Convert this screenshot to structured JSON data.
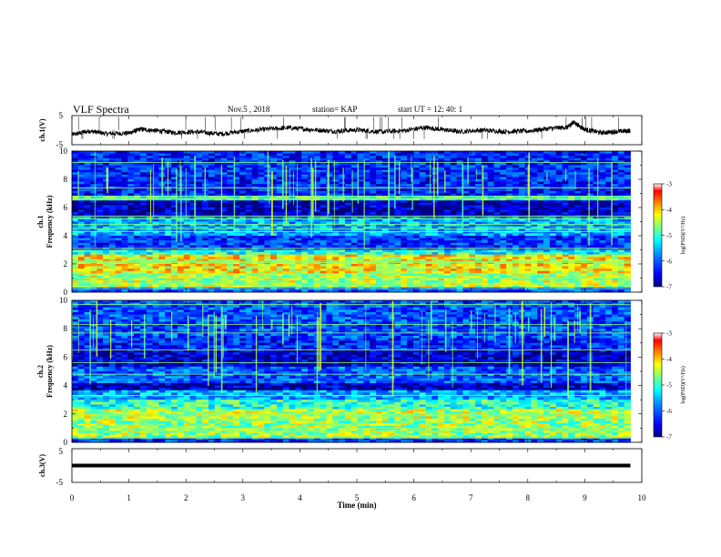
{
  "header": {
    "title": "VLF Spectra",
    "date": "Nov.5 , 2018",
    "station": "station= KAP",
    "start_ut": "start UT = 12: 40: 1"
  },
  "chart_data": [
    {
      "type": "line",
      "panel": "ch1-waveform",
      "ylabel": "ch.1(V)",
      "ylim": [
        -5,
        5
      ],
      "yticks": [
        "5",
        "-5"
      ],
      "xlim": [
        0,
        10
      ],
      "x_end": 9.8,
      "color": "#000000",
      "trend": [
        [
          0.0,
          -1.6
        ],
        [
          0.3,
          -0.3
        ],
        [
          0.6,
          -1.2
        ],
        [
          1.0,
          -1.0
        ],
        [
          1.2,
          0.3
        ],
        [
          1.5,
          -0.2
        ],
        [
          1.8,
          -0.8
        ],
        [
          2.2,
          -0.6
        ],
        [
          2.6,
          -1.3
        ],
        [
          3.0,
          -0.4
        ],
        [
          3.4,
          0.3
        ],
        [
          3.8,
          0.8
        ],
        [
          4.2,
          0.2
        ],
        [
          4.6,
          -0.4
        ],
        [
          5.0,
          0.1
        ],
        [
          5.4,
          -0.6
        ],
        [
          5.8,
          -0.2
        ],
        [
          6.2,
          0.9
        ],
        [
          6.5,
          0.2
        ],
        [
          6.8,
          -0.5
        ],
        [
          7.2,
          0.0
        ],
        [
          7.6,
          -0.5
        ],
        [
          8.0,
          -0.3
        ],
        [
          8.4,
          0.6
        ],
        [
          8.7,
          1.0
        ],
        [
          8.8,
          2.8
        ],
        [
          9.0,
          0.2
        ],
        [
          9.3,
          -0.9
        ],
        [
          9.6,
          -0.4
        ],
        [
          9.8,
          -0.2
        ]
      ]
    },
    {
      "type": "heatmap",
      "panel": "ch1-spectrogram",
      "ylabel": "ch.1",
      "ylabel2": "Frequency (kHz)",
      "ylim": [
        0,
        10
      ],
      "yticks": [
        "0",
        "2",
        "4",
        "6",
        "8",
        "10"
      ],
      "xlim": [
        0,
        10
      ],
      "x_end": 9.8,
      "bands": [
        [
          0.0,
          0.3,
          -6.0
        ],
        [
          0.3,
          1.3,
          -4.5
        ],
        [
          1.3,
          2.6,
          -4.2
        ],
        [
          2.6,
          3.0,
          -5.2
        ],
        [
          3.0,
          4.0,
          -6.2
        ],
        [
          4.0,
          5.4,
          -5.6
        ],
        [
          5.4,
          6.5,
          -6.8
        ],
        [
          6.5,
          6.8,
          -5.0
        ],
        [
          6.8,
          7.2,
          -6.4
        ],
        [
          7.2,
          10.0,
          -6.3
        ]
      ],
      "lines_khz": [
        0.25,
        0.6,
        1.0,
        1.3,
        2.1,
        2.2,
        3.1,
        4.3,
        4.5,
        4.8,
        5.2,
        5.4,
        6.6,
        6.8,
        7.4,
        9.2
      ]
    },
    {
      "type": "heatmap",
      "panel": "ch2-spectrogram",
      "ylabel": "ch.2",
      "ylabel2": "Frequency (kHz)",
      "ylim": [
        0,
        10
      ],
      "yticks": [
        "0",
        "2",
        "4",
        "6",
        "8",
        "10"
      ],
      "xlim": [
        0,
        10
      ],
      "x_end": 9.8,
      "bands": [
        [
          0.0,
          0.3,
          -6.2
        ],
        [
          0.3,
          1.6,
          -4.6
        ],
        [
          1.6,
          2.4,
          -4.5
        ],
        [
          2.4,
          3.0,
          -5.0
        ],
        [
          3.0,
          3.6,
          -5.6
        ],
        [
          3.6,
          4.2,
          -6.8
        ],
        [
          4.2,
          5.4,
          -6.0
        ],
        [
          5.4,
          6.5,
          -6.7
        ],
        [
          6.5,
          7.3,
          -6.3
        ],
        [
          7.3,
          10.0,
          -6.1
        ]
      ],
      "lines_khz": [
        0.3,
        0.8,
        1.0,
        1.9,
        2.0,
        3.3,
        4.8,
        5.6,
        6.5,
        7.7,
        8.3,
        9.7
      ]
    },
    {
      "type": "line",
      "panel": "ch3-waveform",
      "ylabel": "ch.3(V)",
      "ylim": [
        -5,
        5
      ],
      "yticks": [
        "5",
        "-5"
      ],
      "xlim": [
        0,
        10
      ],
      "x_end": 9.8,
      "xlabel": "Time (min)",
      "xticks": [
        "0",
        "1",
        "2",
        "3",
        "4",
        "5",
        "6",
        "7",
        "8",
        "9",
        "10"
      ],
      "value": 0,
      "color": "#000000"
    }
  ],
  "colorbar": {
    "label": "log(PSD)(V²/Hz)",
    "range": [
      -7,
      -3
    ],
    "ticks": [
      "-3",
      "-4",
      "-5",
      "-6",
      "-7"
    ],
    "colors": [
      "#00007f",
      "#0000ff",
      "#007fff",
      "#00ffff",
      "#7fff7f",
      "#ffff00",
      "#ff7f00",
      "#ff0000",
      "#ffffff"
    ]
  }
}
